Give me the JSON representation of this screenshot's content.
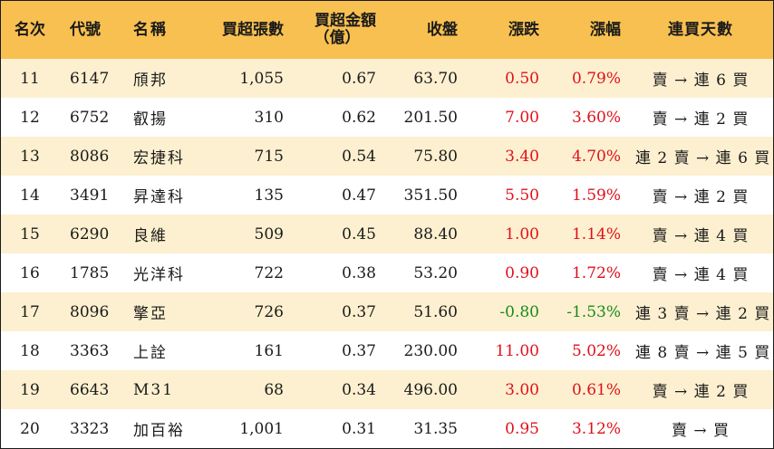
{
  "headers": {
    "rank": "名次",
    "code": "代號",
    "name": "名稱",
    "net_buy_lots": "買超張數",
    "net_buy_amount": "買超金額",
    "net_buy_amount_unit": "（億）",
    "close": "收盤",
    "change": "漲跌",
    "change_pct": "漲幅",
    "consecutive_days": "連買天數"
  },
  "colors": {
    "header_bg": "#f8c050",
    "row_alt_bg": "#fdf0d0",
    "up": "#e0101a",
    "down": "#1a8a1a"
  },
  "rows": [
    {
      "rank": "11",
      "code": "6147",
      "name": "頎邦",
      "lots": "1,055",
      "amount": "0.67",
      "close": "63.70",
      "change": "0.50",
      "pct": "0.79%",
      "days": "賣 → 連 6 買",
      "dir": "up"
    },
    {
      "rank": "12",
      "code": "6752",
      "name": "叡揚",
      "lots": "310",
      "amount": "0.62",
      "close": "201.50",
      "change": "7.00",
      "pct": "3.60%",
      "days": "賣 → 連 2 買",
      "dir": "up"
    },
    {
      "rank": "13",
      "code": "8086",
      "name": "宏捷科",
      "lots": "715",
      "amount": "0.54",
      "close": "75.80",
      "change": "3.40",
      "pct": "4.70%",
      "days": "連 2 賣 → 連 6 買",
      "dir": "up"
    },
    {
      "rank": "14",
      "code": "3491",
      "name": "昇達科",
      "lots": "135",
      "amount": "0.47",
      "close": "351.50",
      "change": "5.50",
      "pct": "1.59%",
      "days": "賣 → 連 2 買",
      "dir": "up"
    },
    {
      "rank": "15",
      "code": "6290",
      "name": "良維",
      "lots": "509",
      "amount": "0.45",
      "close": "88.40",
      "change": "1.00",
      "pct": "1.14%",
      "days": "賣 → 連 4 買",
      "dir": "up"
    },
    {
      "rank": "16",
      "code": "1785",
      "name": "光洋科",
      "lots": "722",
      "amount": "0.38",
      "close": "53.20",
      "change": "0.90",
      "pct": "1.72%",
      "days": "賣 → 連 4 買",
      "dir": "up"
    },
    {
      "rank": "17",
      "code": "8096",
      "name": "擎亞",
      "lots": "726",
      "amount": "0.37",
      "close": "51.60",
      "change": "-0.80",
      "pct": "-1.53%",
      "days": "連 3 賣 → 連 2 買",
      "dir": "down"
    },
    {
      "rank": "18",
      "code": "3363",
      "name": "上詮",
      "lots": "161",
      "amount": "0.37",
      "close": "230.00",
      "change": "11.00",
      "pct": "5.02%",
      "days": "連 8 賣 → 連 5 買",
      "dir": "up"
    },
    {
      "rank": "19",
      "code": "6643",
      "name": "M31",
      "lots": "68",
      "amount": "0.34",
      "close": "496.00",
      "change": "3.00",
      "pct": "0.61%",
      "days": "賣 → 連 2 買",
      "dir": "up"
    },
    {
      "rank": "20",
      "code": "3323",
      "name": "加百裕",
      "lots": "1,001",
      "amount": "0.31",
      "close": "31.35",
      "change": "0.95",
      "pct": "3.12%",
      "days": "賣 → 買",
      "dir": "up"
    }
  ]
}
